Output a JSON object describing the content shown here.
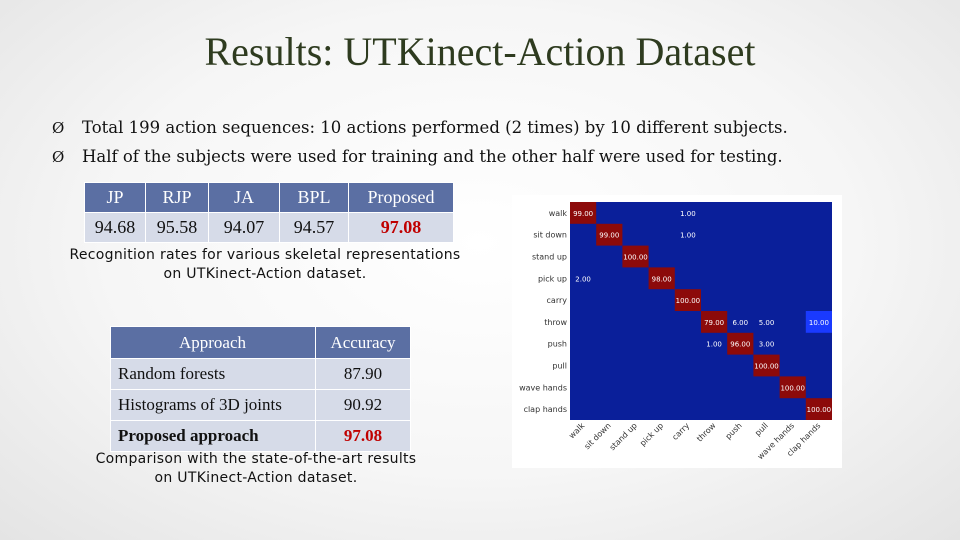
{
  "slide": {
    "title": "Results: UTKinect-Action Dataset",
    "bullets": [
      "Total 199 action sequences: 10 actions performed (2 times) by 10 different subjects.",
      "Half of the subjects were used for training and the other half were used for testing."
    ],
    "bullet_marker": "Ø"
  },
  "table1": {
    "headers": [
      "JP",
      "RJP",
      "JA",
      "BPL",
      "Proposed"
    ],
    "values": [
      "94.68",
      "95.58",
      "94.07",
      "94.57",
      "97.08"
    ],
    "caption": "Recognition rates for various skeletal representations on UTKinect-Action dataset."
  },
  "table2": {
    "headers": [
      "Approach",
      "Accuracy"
    ],
    "rows": [
      {
        "approach": "Random forests",
        "accuracy": "87.90"
      },
      {
        "approach": "Histograms of 3D joints",
        "accuracy": "90.92"
      },
      {
        "approach": "Proposed approach",
        "accuracy": "97.08"
      }
    ],
    "caption": "Comparison with the state-of-the-art results on UTKinect-Action dataset."
  },
  "chart_data": {
    "type": "heatmap",
    "rows": [
      "walk",
      "sit down",
      "stand up",
      "pick up",
      "carry",
      "throw",
      "push",
      "pull",
      "wave hands",
      "clap hands"
    ],
    "cols": [
      "walk",
      "sit down",
      "stand up",
      "pick up",
      "carry",
      "throw",
      "push",
      "pull",
      "wave hands",
      "clap hands"
    ],
    "cells": [
      {
        "r": 0,
        "c": 0,
        "v": "99.00"
      },
      {
        "r": 0,
        "c": 4,
        "v": "1.00"
      },
      {
        "r": 1,
        "c": 1,
        "v": "99.00"
      },
      {
        "r": 1,
        "c": 4,
        "v": "1.00"
      },
      {
        "r": 2,
        "c": 2,
        "v": "100.00"
      },
      {
        "r": 3,
        "c": 0,
        "v": "2.00"
      },
      {
        "r": 3,
        "c": 3,
        "v": "98.00"
      },
      {
        "r": 4,
        "c": 4,
        "v": "100.00"
      },
      {
        "r": 5,
        "c": 5,
        "v": "79.00"
      },
      {
        "r": 5,
        "c": 6,
        "v": "6.00"
      },
      {
        "r": 5,
        "c": 7,
        "v": "5.00"
      },
      {
        "r": 5,
        "c": 9,
        "v": "10.00"
      },
      {
        "r": 6,
        "c": 5,
        "v": "1.00"
      },
      {
        "r": 6,
        "c": 6,
        "v": "96.00"
      },
      {
        "r": 6,
        "c": 7,
        "v": "3.00"
      },
      {
        "r": 7,
        "c": 7,
        "v": "100.00"
      },
      {
        "r": 8,
        "c": 8,
        "v": "100.00"
      },
      {
        "r": 9,
        "c": 9,
        "v": "100.00"
      }
    ],
    "colors": {
      "background": "#0a1f9a",
      "high": "#8c0a0a",
      "mid": "#1a3aff",
      "text": "#ffffff"
    }
  }
}
